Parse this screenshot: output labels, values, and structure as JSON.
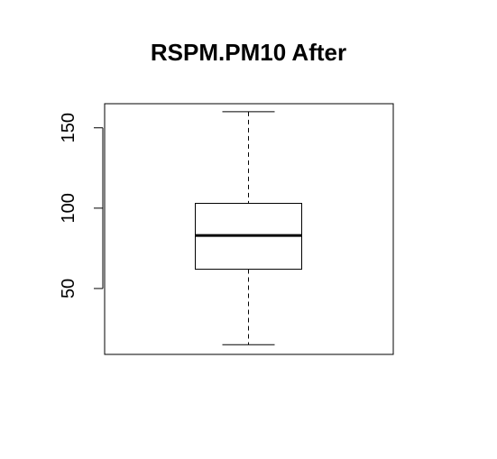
{
  "chart_data": {
    "type": "boxplot",
    "title": "RSPM.PM10 After",
    "xlabel": "",
    "ylabel": "",
    "ylim": [
      9,
      165
    ],
    "yticks": [
      50,
      100,
      150
    ],
    "box": {
      "min": 15,
      "q1": 62,
      "median": 83,
      "q3": 103,
      "max": 160
    },
    "grid": false,
    "legend": "none"
  }
}
